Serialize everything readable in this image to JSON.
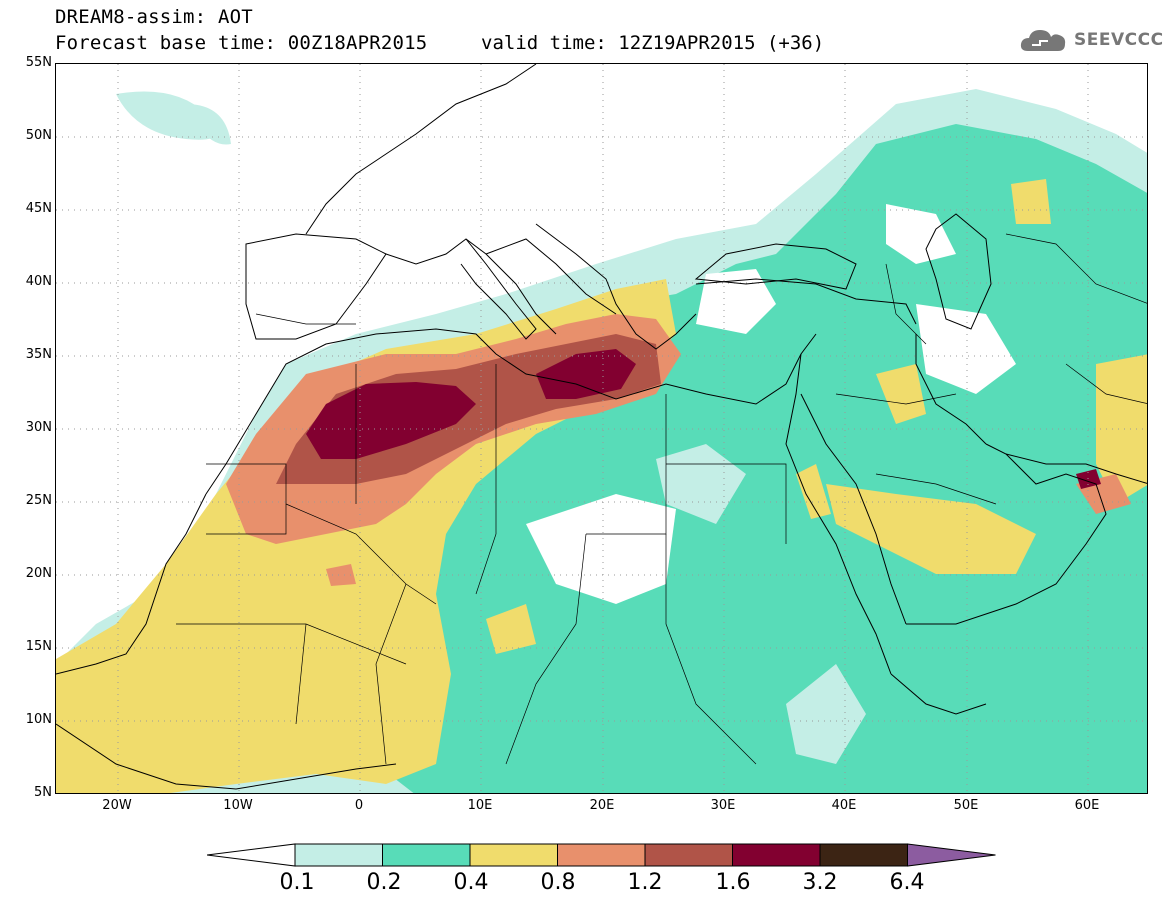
{
  "header": {
    "title": "DREAM8-assim: AOT",
    "base_time": "Forecast base time: 00Z18APR2015",
    "valid_time": "valid time: 12Z19APR2015 (+36)"
  },
  "logo": {
    "text": "SEEVCCC",
    "icon": "cloud-logo-icon"
  },
  "axes": {
    "lat_labels": [
      "55N",
      "50N",
      "45N",
      "40N",
      "35N",
      "30N",
      "25N",
      "20N",
      "15N",
      "10N",
      "5N"
    ],
    "lon_labels": [
      "20W",
      "10W",
      "0",
      "10E",
      "20E",
      "30E",
      "40E",
      "50E",
      "60E"
    ]
  },
  "colorbar": {
    "labels": [
      "0.1",
      "0.2",
      "0.4",
      "0.8",
      "1.2",
      "1.6",
      "3.2",
      "6.4"
    ],
    "colors": [
      "#ffffff",
      "#c4eee6",
      "#58dcb8",
      "#f0dc6c",
      "#e8906c",
      "#b05448",
      "#820030",
      "#3c2414",
      "#8c5ca0"
    ]
  },
  "colors": {
    "frame": "#000000",
    "coast": "#000000",
    "grid": "#9a9a9a",
    "logo": "#777777"
  }
}
